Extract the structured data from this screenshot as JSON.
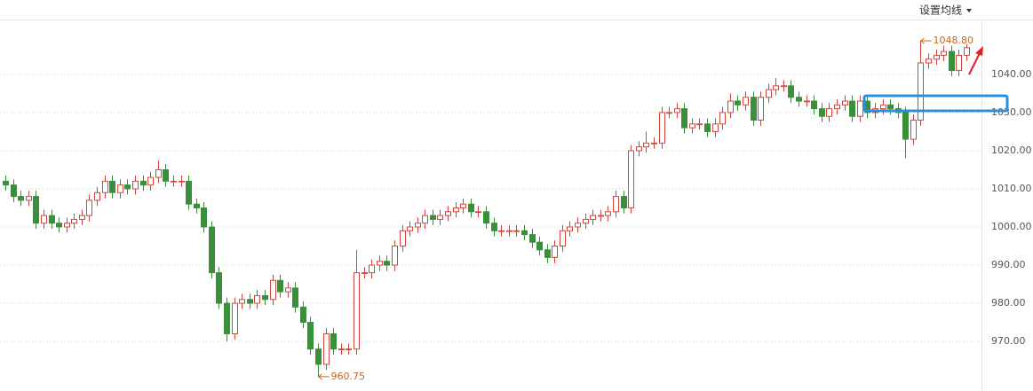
{
  "toolbar": {
    "button": "设置均线"
  },
  "chart_data": {
    "type": "candlestick",
    "colors": {
      "up": "#d0463c",
      "down": "#3a8f3a",
      "annotation": "#c9651e"
    },
    "open": [
      1012,
      1011,
      1008,
      1007,
      1008,
      1001,
      1003,
      1001,
      1000,
      1001,
      1002,
      1003,
      1007,
      1009,
      1012,
      1009,
      1011,
      1010,
      1012,
      1011,
      1013,
      1015,
      1012,
      1012,
      1012,
      1006,
      1005,
      1000,
      988,
      980,
      972,
      980,
      981,
      980,
      982,
      981,
      986,
      983,
      984,
      979,
      975,
      968,
      964,
      972,
      968,
      968,
      968,
      988,
      988,
      990,
      991,
      990,
      995,
      999,
      1000,
      1001,
      1003,
      1002,
      1003,
      1004,
      1005,
      1006,
      1004,
      1004,
      1001,
      999,
      999,
      999,
      999,
      998,
      996,
      994,
      992,
      995,
      999,
      1000,
      1001,
      1002,
      1003,
      1003,
      1004,
      1008,
      1005,
      1020,
      1021,
      1022,
      1022,
      1030,
      1030,
      1031,
      1026,
      1027,
      1027,
      1025,
      1027,
      1030,
      1033,
      1032,
      1034,
      1028,
      1034,
      1036,
      1037,
      1037,
      1034,
      1033,
      1033,
      1031,
      1029,
      1031,
      1032,
      1033,
      1029,
      1033,
      1030,
      1031,
      1032,
      1031,
      1030,
      1023,
      1028,
      1043,
      1044,
      1045,
      1046,
      1041,
      1045
    ],
    "high": [
      1013.5,
      1012.5,
      1009.5,
      1009.5,
      1009.5,
      1004.5,
      1004.5,
      1002.5,
      1002.5,
      1003.5,
      1004.5,
      1008.5,
      1010.5,
      1013.5,
      1013.5,
      1012.5,
      1012.5,
      1013.5,
      1013.5,
      1014.5,
      1017.5,
      1016.5,
      1013.5,
      1013.5,
      1013.5,
      1007.5,
      1006.5,
      1001.5,
      989.5,
      981.5,
      981.5,
      982.5,
      982.5,
      983.5,
      983.5,
      987.5,
      987.5,
      985.5,
      985.5,
      980.5,
      976.5,
      969.5,
      973.5,
      973.5,
      969.5,
      969.5,
      994,
      989.5,
      991.5,
      992.5,
      992.5,
      996.5,
      1000.5,
      1001.5,
      1002.5,
      1004.5,
      1004.5,
      1004.5,
      1005.5,
      1006.5,
      1007.5,
      1007.5,
      1005.5,
      1005.5,
      1002.5,
      1000.5,
      1000.5,
      1000.5,
      1000.5,
      999.5,
      997.5,
      995.5,
      996.5,
      1000.5,
      1001.5,
      1002.5,
      1003.5,
      1004.5,
      1004.5,
      1005.5,
      1009.5,
      1009.5,
      1021.5,
      1022.5,
      1025,
      1023.5,
      1031.5,
      1031.5,
      1032.5,
      1032.5,
      1028.5,
      1028.5,
      1028.5,
      1028.5,
      1031.5,
      1035,
      1034.5,
      1035.5,
      1035.5,
      1035.5,
      1037.5,
      1039,
      1038.5,
      1038.5,
      1035.5,
      1034.5,
      1034.5,
      1032.5,
      1032.5,
      1033.5,
      1034.5,
      1034.5,
      1034.5,
      1034.5,
      1032.5,
      1033.5,
      1033.5,
      1032.5,
      1031.5,
      1029.5,
      1048.8,
      1045.5,
      1046.5,
      1047.5,
      1047.5,
      1046.5,
      1048
    ],
    "low": [
      1009.5,
      1006.5,
      1005.5,
      1005.5,
      999.5,
      999.5,
      999.5,
      998.5,
      998.5,
      999.5,
      1000.5,
      1001.5,
      1005.5,
      1007.5,
      1007.5,
      1007.5,
      1008.5,
      1008.5,
      1009.5,
      1009.5,
      1011.5,
      1010.5,
      1010.5,
      1010.5,
      1004.5,
      1003.5,
      998.5,
      986.5,
      978.5,
      970,
      970.5,
      978.5,
      978.5,
      978.5,
      979.5,
      979.5,
      981.5,
      981.5,
      977.5,
      973.5,
      966.5,
      960.75,
      962.5,
      966.5,
      966.5,
      966.5,
      966.5,
      986.5,
      986.5,
      988.5,
      988.5,
      988.5,
      993.5,
      997.5,
      998.5,
      999.5,
      1000.5,
      1000.5,
      1001.5,
      1002.5,
      1003.5,
      1002.5,
      1002.5,
      999.5,
      997.5,
      997.5,
      997.5,
      997.5,
      996.5,
      994.5,
      992.5,
      990.5,
      990.5,
      993.5,
      997.5,
      998.5,
      999.5,
      1000.5,
      1001.5,
      1001.5,
      1002.5,
      1003.5,
      1003.5,
      1018.5,
      1019.5,
      1020.5,
      1020.5,
      1028.5,
      1028.5,
      1024.5,
      1024.5,
      1025.5,
      1023.5,
      1023.5,
      1025.5,
      1028.5,
      1030.5,
      1030.5,
      1026.5,
      1026.5,
      1032.5,
      1034.5,
      1035.5,
      1032.5,
      1031.5,
      1031.5,
      1029.5,
      1027.5,
      1027.5,
      1029.5,
      1030.5,
      1027.5,
      1027.5,
      1028.5,
      1028.5,
      1029.5,
      1029.5,
      1028.5,
      1018,
      1021.5,
      1026.5,
      1041.5,
      1042.5,
      1043.5,
      1039.5,
      1039.5,
      1043.5
    ],
    "close": [
      1011,
      1008,
      1007,
      1008,
      1001,
      1003,
      1001,
      1000,
      1001,
      1002,
      1003,
      1007,
      1009,
      1012,
      1009,
      1011,
      1010,
      1012,
      1011,
      1013,
      1015,
      1012,
      1012,
      1012,
      1006,
      1005,
      1000,
      988,
      980,
      972,
      980,
      981,
      980,
      982,
      981,
      986,
      983,
      984,
      979,
      975,
      968,
      964,
      972,
      968,
      968,
      968,
      988,
      988,
      990,
      991,
      990,
      995,
      999,
      1000,
      1001,
      1003,
      1002,
      1003,
      1004,
      1005,
      1006,
      1004,
      1004,
      1001,
      999,
      999,
      999,
      999,
      998,
      996,
      994,
      992,
      995,
      999,
      1000,
      1001,
      1002,
      1003,
      1003,
      1004,
      1008,
      1005,
      1020,
      1021,
      1022,
      1022,
      1030,
      1030,
      1031,
      1026,
      1027,
      1027,
      1025,
      1027,
      1030,
      1033,
      1032,
      1034,
      1028,
      1034,
      1036,
      1037,
      1037,
      1034,
      1033,
      1033,
      1031,
      1029,
      1031,
      1032,
      1033,
      1029,
      1033,
      1030,
      1031,
      1032,
      1031,
      1030,
      1023,
      1028,
      1043,
      1044,
      1045,
      1046,
      1041,
      1045,
      1047
    ],
    "ylim": [
      957,
      1059.5
    ],
    "yticks": [
      {
        "value": 970,
        "label": "970.00"
      },
      {
        "value": 980,
        "label": "980.00"
      },
      {
        "value": 990,
        "label": "990.00"
      },
      {
        "value": 1000,
        "label": "1000.00"
      },
      {
        "value": 1010,
        "label": "1010.00"
      },
      {
        "value": 1020,
        "label": "1020.00"
      },
      {
        "value": 1030,
        "label": "1030.00"
      },
      {
        "value": 1040,
        "label": "1040.00"
      }
    ],
    "grid": true,
    "annotations": [
      {
        "value": 1048.8,
        "label": "1048.80"
      },
      {
        "value": 960.75,
        "label": "960.75"
      }
    ]
  }
}
